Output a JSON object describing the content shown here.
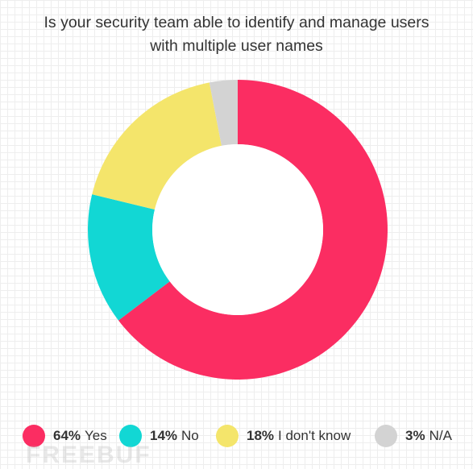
{
  "chart_data": {
    "type": "pie",
    "title_lines": [
      "Is your security team able to identify and manage users",
      "with multiple user names"
    ],
    "categories": [
      "Yes",
      "No",
      "I don't know",
      "N/A"
    ],
    "values": [
      64,
      14,
      18,
      3
    ],
    "value_labels": [
      "64%",
      "14%",
      "18%",
      "3%"
    ],
    "colors": [
      "#fb2d62",
      "#12d7d4",
      "#f4e56b",
      "#d3d3d3"
    ],
    "donut": true,
    "start_angle_deg": 0,
    "legend_position": "bottom"
  },
  "watermark_text": "FREEBUF"
}
